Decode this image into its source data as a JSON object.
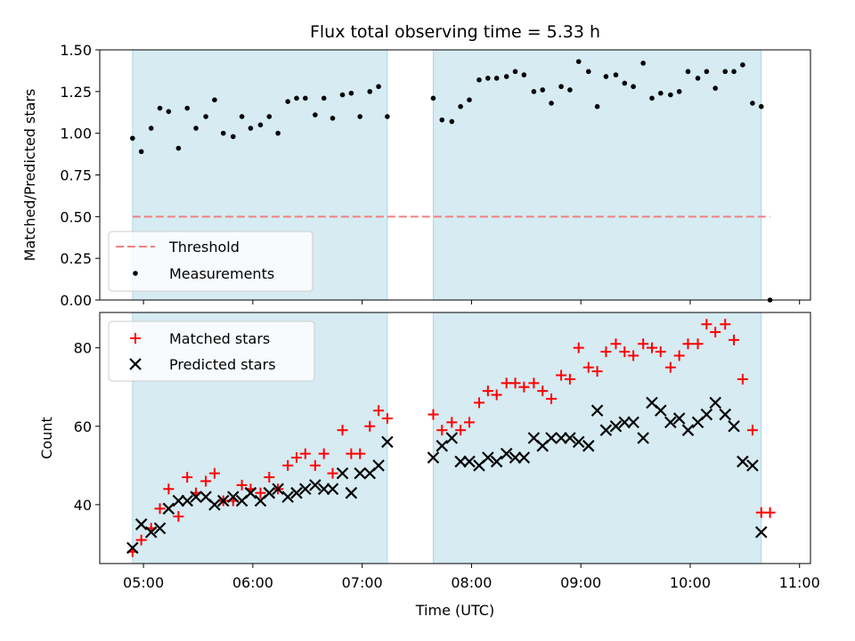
{
  "chart_data": {
    "type": "scatter",
    "title": "Flux total observing time = 5.33 h",
    "xlabel": "Time (UTC)",
    "xlim": [
      4.6,
      11.1
    ],
    "xticks": [
      {
        "value": 5,
        "label": "05:00"
      },
      {
        "value": 6,
        "label": "06:00"
      },
      {
        "value": 7,
        "label": "07:00"
      },
      {
        "value": 8,
        "label": "08:00"
      },
      {
        "value": 9,
        "label": "09:00"
      },
      {
        "value": 10,
        "label": "10:00"
      },
      {
        "value": 11,
        "label": "11:00"
      }
    ],
    "shaded_intervals": [
      [
        4.9,
        7.23
      ],
      [
        7.65,
        10.65
      ]
    ],
    "colors": {
      "shade": "#add8e6",
      "threshold": "#f08080",
      "matched": "#ff0000",
      "predicted": "#000000",
      "measurement": "#000000"
    },
    "top": {
      "ylabel": "Matched/Predicted stars",
      "ylim": [
        0,
        1.5
      ],
      "yticks": [
        "0.00",
        "0.25",
        "0.50",
        "0.75",
        "1.00",
        "1.25",
        "1.50"
      ],
      "threshold": {
        "name": "Threshold",
        "y": 0.5,
        "x_range": [
          4.9,
          10.73
        ]
      },
      "legend_position": "lower-left",
      "series": [
        {
          "name": "Measurements",
          "x": [
            4.9,
            4.98,
            5.07,
            5.15,
            5.23,
            5.32,
            5.4,
            5.48,
            5.57,
            5.65,
            5.73,
            5.82,
            5.9,
            5.98,
            6.07,
            6.15,
            6.23,
            6.32,
            6.4,
            6.48,
            6.57,
            6.65,
            6.73,
            6.82,
            6.9,
            6.98,
            7.07,
            7.15,
            7.23,
            7.65,
            7.73,
            7.82,
            7.9,
            7.98,
            8.07,
            8.15,
            8.23,
            8.32,
            8.4,
            8.48,
            8.57,
            8.65,
            8.73,
            8.82,
            8.9,
            8.98,
            9.07,
            9.15,
            9.23,
            9.32,
            9.4,
            9.48,
            9.57,
            9.65,
            9.73,
            9.82,
            9.9,
            9.98,
            10.07,
            10.15,
            10.23,
            10.32,
            10.4,
            10.48,
            10.57,
            10.65,
            10.73
          ],
          "y": [
            0.97,
            0.89,
            1.03,
            1.15,
            1.13,
            0.91,
            1.15,
            1.03,
            1.1,
            1.2,
            1.0,
            0.98,
            1.1,
            1.03,
            1.05,
            1.1,
            1.0,
            1.19,
            1.21,
            1.21,
            1.11,
            1.21,
            1.09,
            1.23,
            1.24,
            1.1,
            1.25,
            1.28,
            1.1,
            1.21,
            1.08,
            1.07,
            1.16,
            1.2,
            1.32,
            1.33,
            1.33,
            1.34,
            1.37,
            1.35,
            1.25,
            1.26,
            1.18,
            1.28,
            1.26,
            1.43,
            1.37,
            1.16,
            1.34,
            1.35,
            1.3,
            1.28,
            1.42,
            1.21,
            1.24,
            1.23,
            1.25,
            1.37,
            1.33,
            1.37,
            1.27,
            1.37,
            1.37,
            1.41,
            1.18,
            1.16,
            0.0
          ]
        }
      ]
    },
    "bottom": {
      "ylabel": "Count",
      "ylim": [
        25,
        89
      ],
      "yticks": [
        "40",
        "60",
        "80"
      ],
      "legend_position": "upper-left",
      "series": [
        {
          "name": "Matched stars",
          "marker": "plus",
          "x": [
            4.9,
            4.98,
            5.07,
            5.15,
            5.23,
            5.32,
            5.4,
            5.48,
            5.57,
            5.65,
            5.73,
            5.82,
            5.9,
            5.98,
            6.07,
            6.15,
            6.23,
            6.32,
            6.4,
            6.48,
            6.57,
            6.65,
            6.73,
            6.82,
            6.9,
            6.98,
            7.07,
            7.15,
            7.23,
            7.65,
            7.73,
            7.82,
            7.9,
            7.98,
            8.07,
            8.15,
            8.23,
            8.32,
            8.4,
            8.48,
            8.57,
            8.65,
            8.73,
            8.82,
            8.9,
            8.98,
            9.07,
            9.15,
            9.23,
            9.32,
            9.4,
            9.48,
            9.57,
            9.65,
            9.73,
            9.82,
            9.9,
            9.98,
            10.07,
            10.15,
            10.23,
            10.32,
            10.4,
            10.48,
            10.57,
            10.65,
            10.73
          ],
          "y": [
            28,
            31,
            34,
            39,
            44,
            37,
            47,
            43,
            46,
            48,
            41,
            41,
            45,
            44,
            43,
            47,
            44,
            50,
            52,
            53,
            50,
            53,
            48,
            59,
            53,
            53,
            60,
            64,
            62,
            63,
            59,
            61,
            59,
            61,
            66,
            69,
            68,
            71,
            71,
            70,
            71,
            69,
            67,
            73,
            72,
            80,
            75,
            74,
            79,
            81,
            79,
            78,
            81,
            80,
            79,
            75,
            78,
            81,
            81,
            86,
            84,
            86,
            82,
            72,
            59,
            38,
            38
          ]
        },
        {
          "name": "Predicted stars",
          "marker": "x",
          "x": [
            4.9,
            4.98,
            5.07,
            5.15,
            5.23,
            5.32,
            5.4,
            5.48,
            5.57,
            5.65,
            5.73,
            5.82,
            5.9,
            5.98,
            6.07,
            6.15,
            6.23,
            6.32,
            6.4,
            6.48,
            6.57,
            6.65,
            6.73,
            6.82,
            6.9,
            6.98,
            7.07,
            7.15,
            7.23,
            7.65,
            7.73,
            7.82,
            7.9,
            7.98,
            8.07,
            8.15,
            8.23,
            8.32,
            8.4,
            8.48,
            8.57,
            8.65,
            8.73,
            8.82,
            8.9,
            8.98,
            9.07,
            9.15,
            9.23,
            9.32,
            9.4,
            9.48,
            9.57,
            9.65,
            9.73,
            9.82,
            9.9,
            9.98,
            10.07,
            10.15,
            10.23,
            10.32,
            10.4,
            10.48,
            10.57,
            10.65
          ],
          "y": [
            29,
            35,
            33,
            34,
            39,
            41,
            41,
            42,
            42,
            40,
            41,
            42,
            41,
            43,
            41,
            43,
            44,
            42,
            43,
            44,
            45,
            44,
            44,
            48,
            43,
            48,
            48,
            50,
            56,
            52,
            55,
            57,
            51,
            51,
            50,
            52,
            51,
            53,
            52,
            52,
            57,
            55,
            57,
            57,
            57,
            56,
            55,
            64,
            59,
            60,
            61,
            61,
            57,
            66,
            64,
            61,
            62,
            59,
            61,
            63,
            66,
            63,
            60,
            51,
            50,
            33
          ]
        }
      ]
    }
  }
}
